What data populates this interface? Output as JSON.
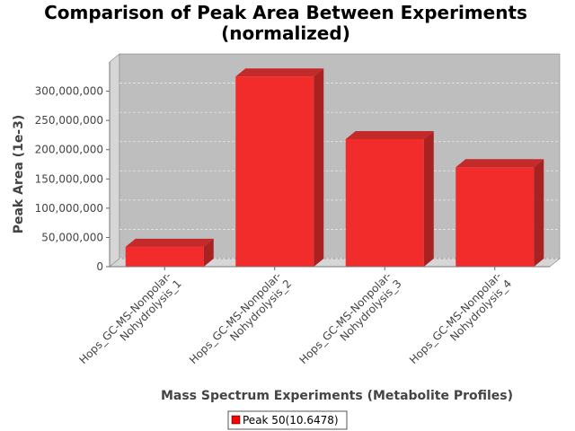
{
  "chart_data": {
    "type": "bar",
    "title": [
      "Comparison of Peak Area Between Experiments",
      "(normalized)"
    ],
    "xlabel": "Mass Spectrum Experiments (Metabolite Profiles)",
    "ylabel": "Peak Area (1e-3)",
    "categories": [
      [
        "Hops_GC-MS-Nonpolar-",
        "Nohydrolysis_1"
      ],
      [
        "Hops_GC-MS-Nonpolar-",
        "Nohydrolysis_2"
      ],
      [
        "Hops_GC-MS-Nonpolar-",
        "Nohydrolysis_3"
      ],
      [
        "Hops_GC-MS-Nonpolar-",
        "Nohydrolysis_4"
      ]
    ],
    "series": [
      {
        "name": "Peak 50(10.6478)",
        "values": [
          34000000,
          325000000,
          218000000,
          170000000
        ]
      }
    ],
    "yticks": [
      "0",
      "50,000,000",
      "100,000,000",
      "150,000,000",
      "200,000,000",
      "250,000,000",
      "300,000,000"
    ],
    "ylim": [
      0,
      350000000
    ],
    "grid": true,
    "legend_position": "bottom",
    "colors": {
      "bar_front": "#f22b2b",
      "bar_top": "#c42a2a",
      "bar_side": "#a82222",
      "plot_bg": "#bebebe",
      "plot_wall": "#d6d6d6",
      "grid": "#e8e8e8",
      "legend_swatch": "#ff0000"
    }
  }
}
